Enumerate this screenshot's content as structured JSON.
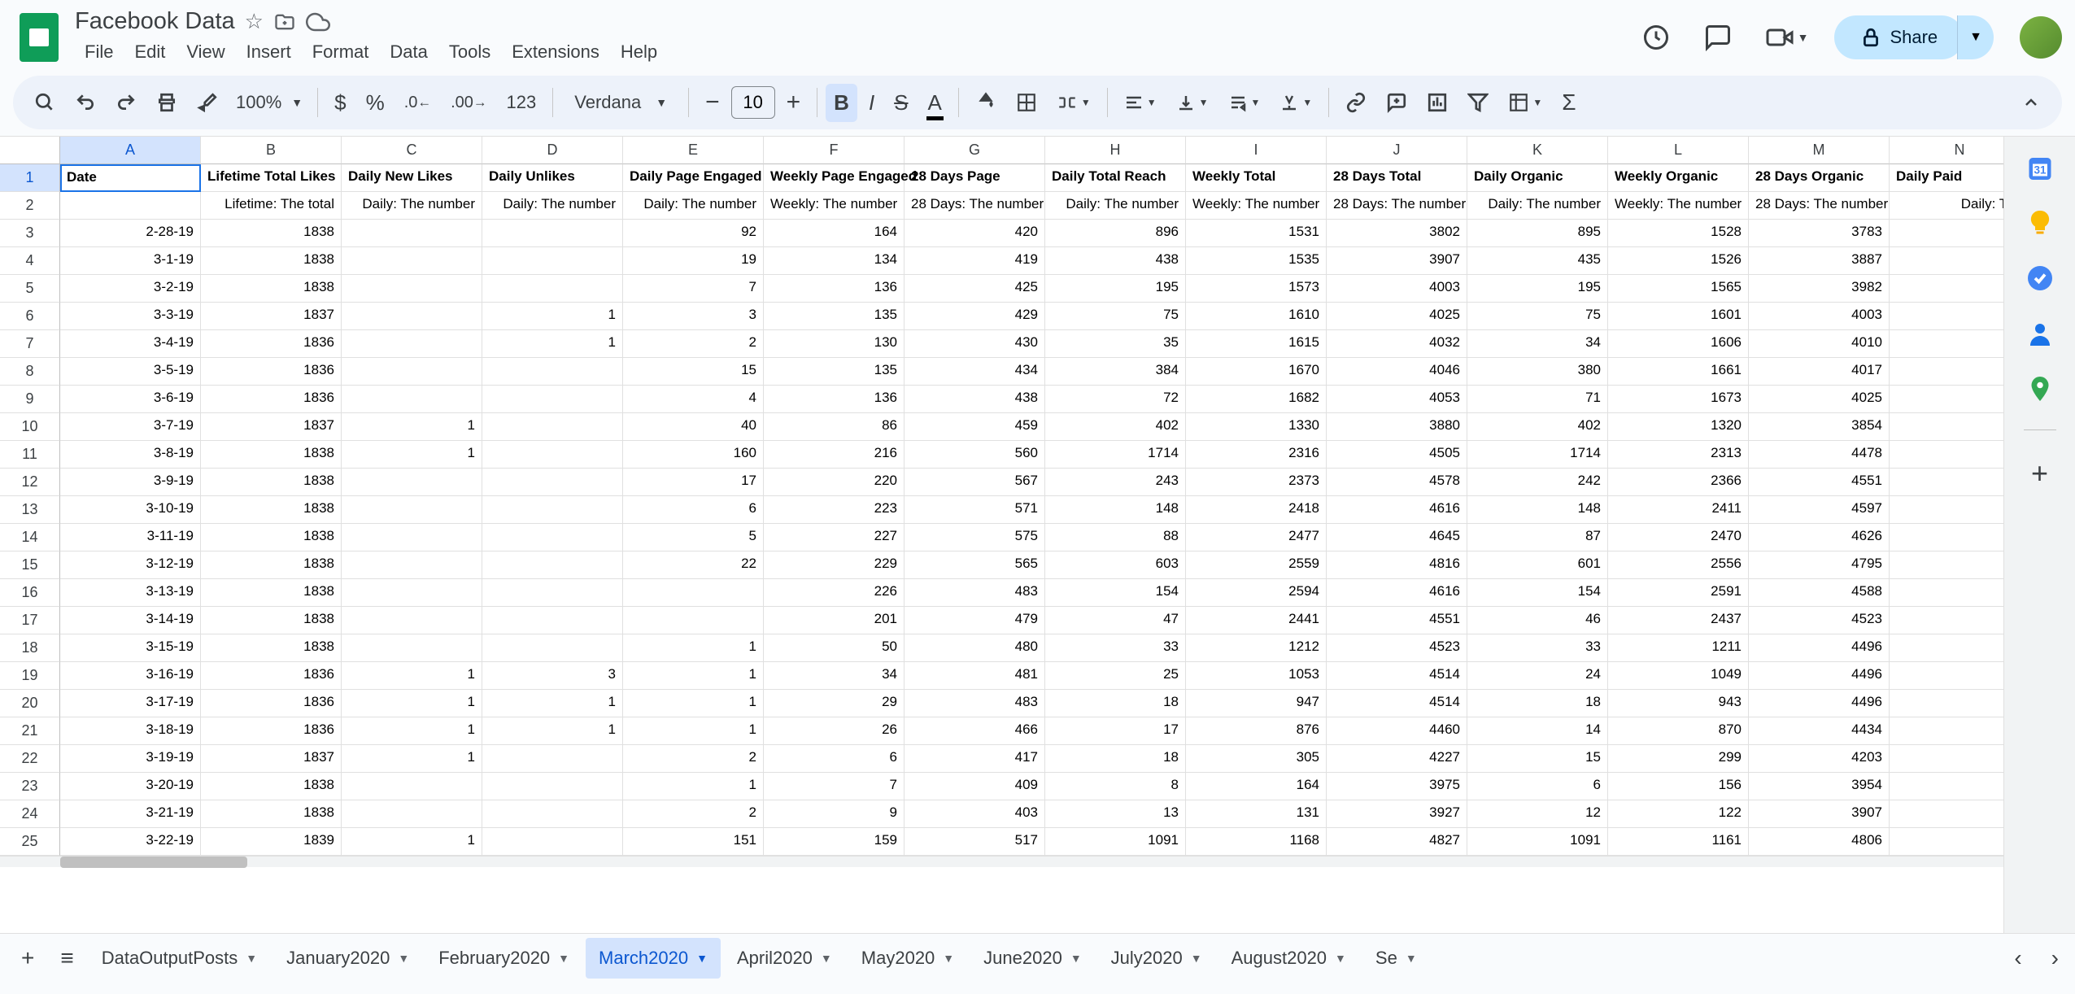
{
  "doc": {
    "title": "Facebook Data"
  },
  "menus": [
    "File",
    "Edit",
    "View",
    "Insert",
    "Format",
    "Data",
    "Tools",
    "Extensions",
    "Help"
  ],
  "toolbar": {
    "zoom": "100%",
    "font": "Verdana",
    "font_size": "10"
  },
  "share": {
    "label": "Share"
  },
  "columns": [
    "A",
    "B",
    "C",
    "D",
    "E",
    "F",
    "G",
    "H",
    "I",
    "J",
    "K",
    "L",
    "M",
    "N"
  ],
  "headers_row1": [
    "Date",
    "Lifetime Total Likes",
    "Daily New Likes",
    "Daily Unlikes",
    "Daily Page Engaged",
    "Weekly Page Engaged",
    "28 Days Page",
    "Daily Total Reach",
    "Weekly Total",
    "28 Days Total",
    "Daily Organic",
    "Weekly Organic",
    "28 Days Organic",
    "Daily Paid"
  ],
  "headers_row2": [
    "",
    "Lifetime: The total",
    "Daily: The number",
    "Daily: The number",
    "Daily: The number",
    "Weekly: The number",
    "28 Days: The number",
    "Daily: The number",
    "Weekly: The number",
    "28 Days: The number",
    "Daily: The number",
    "Weekly: The number",
    "28 Days: The number",
    "Daily: The"
  ],
  "rows": [
    [
      "2-28-19",
      "1838",
      "",
      "",
      "92",
      "164",
      "420",
      "896",
      "1531",
      "3802",
      "895",
      "1528",
      "3783",
      ""
    ],
    [
      "3-1-19",
      "1838",
      "",
      "",
      "19",
      "134",
      "419",
      "438",
      "1535",
      "3907",
      "435",
      "1526",
      "3887",
      ""
    ],
    [
      "3-2-19",
      "1838",
      "",
      "",
      "7",
      "136",
      "425",
      "195",
      "1573",
      "4003",
      "195",
      "1565",
      "3982",
      ""
    ],
    [
      "3-3-19",
      "1837",
      "",
      "1",
      "3",
      "135",
      "429",
      "75",
      "1610",
      "4025",
      "75",
      "1601",
      "4003",
      ""
    ],
    [
      "3-4-19",
      "1836",
      "",
      "1",
      "2",
      "130",
      "430",
      "35",
      "1615",
      "4032",
      "34",
      "1606",
      "4010",
      ""
    ],
    [
      "3-5-19",
      "1836",
      "",
      "",
      "15",
      "135",
      "434",
      "384",
      "1670",
      "4046",
      "380",
      "1661",
      "4017",
      ""
    ],
    [
      "3-6-19",
      "1836",
      "",
      "",
      "4",
      "136",
      "438",
      "72",
      "1682",
      "4053",
      "71",
      "1673",
      "4025",
      ""
    ],
    [
      "3-7-19",
      "1837",
      "1",
      "",
      "40",
      "86",
      "459",
      "402",
      "1330",
      "3880",
      "402",
      "1320",
      "3854",
      ""
    ],
    [
      "3-8-19",
      "1838",
      "1",
      "",
      "160",
      "216",
      "560",
      "1714",
      "2316",
      "4505",
      "1714",
      "2313",
      "4478",
      ""
    ],
    [
      "3-9-19",
      "1838",
      "",
      "",
      "17",
      "220",
      "567",
      "243",
      "2373",
      "4578",
      "242",
      "2366",
      "4551",
      ""
    ],
    [
      "3-10-19",
      "1838",
      "",
      "",
      "6",
      "223",
      "571",
      "148",
      "2418",
      "4616",
      "148",
      "2411",
      "4597",
      ""
    ],
    [
      "3-11-19",
      "1838",
      "",
      "",
      "5",
      "227",
      "575",
      "88",
      "2477",
      "4645",
      "87",
      "2470",
      "4626",
      ""
    ],
    [
      "3-12-19",
      "1838",
      "",
      "",
      "22",
      "229",
      "565",
      "603",
      "2559",
      "4816",
      "601",
      "2556",
      "4795",
      ""
    ],
    [
      "3-13-19",
      "1838",
      "",
      "",
      "",
      "226",
      "483",
      "154",
      "2594",
      "4616",
      "154",
      "2591",
      "4588",
      ""
    ],
    [
      "3-14-19",
      "1838",
      "",
      "",
      "",
      "201",
      "479",
      "47",
      "2441",
      "4551",
      "46",
      "2437",
      "4523",
      ""
    ],
    [
      "3-15-19",
      "1838",
      "",
      "",
      "1",
      "50",
      "480",
      "33",
      "1212",
      "4523",
      "33",
      "1211",
      "4496",
      ""
    ],
    [
      "3-16-19",
      "1836",
      "1",
      "3",
      "1",
      "34",
      "481",
      "25",
      "1053",
      "4514",
      "24",
      "1049",
      "4496",
      ""
    ],
    [
      "3-17-19",
      "1836",
      "1",
      "1",
      "1",
      "29",
      "483",
      "18",
      "947",
      "4514",
      "18",
      "943",
      "4496",
      ""
    ],
    [
      "3-18-19",
      "1836",
      "1",
      "1",
      "1",
      "26",
      "466",
      "17",
      "876",
      "4460",
      "14",
      "870",
      "4434",
      ""
    ],
    [
      "3-19-19",
      "1837",
      "1",
      "",
      "2",
      "6",
      "417",
      "18",
      "305",
      "4227",
      "15",
      "299",
      "4203",
      ""
    ],
    [
      "3-20-19",
      "1838",
      "",
      "",
      "1",
      "7",
      "409",
      "8",
      "164",
      "3975",
      "6",
      "156",
      "3954",
      ""
    ],
    [
      "3-21-19",
      "1838",
      "",
      "",
      "2",
      "9",
      "403",
      "13",
      "131",
      "3927",
      "12",
      "122",
      "3907",
      ""
    ],
    [
      "3-22-19",
      "1839",
      "1",
      "",
      "151",
      "159",
      "517",
      "1091",
      "1168",
      "4827",
      "1091",
      "1161",
      "4806",
      ""
    ]
  ],
  "tabs": [
    {
      "label": "DataOutputPosts",
      "active": false
    },
    {
      "label": "January2020",
      "active": false
    },
    {
      "label": "February2020",
      "active": false
    },
    {
      "label": "March2020",
      "active": true
    },
    {
      "label": "April2020",
      "active": false
    },
    {
      "label": "May2020",
      "active": false
    },
    {
      "label": "June2020",
      "active": false
    },
    {
      "label": "July2020",
      "active": false
    },
    {
      "label": "August2020",
      "active": false
    },
    {
      "label": "Se",
      "active": false
    }
  ],
  "colors": {
    "accent": "#1a73e8",
    "selected_bg": "#d3e3fd",
    "share_bg": "#c2e7ff",
    "toolbar_bg": "#edf2fa",
    "body_bg": "#f9fbfd"
  }
}
